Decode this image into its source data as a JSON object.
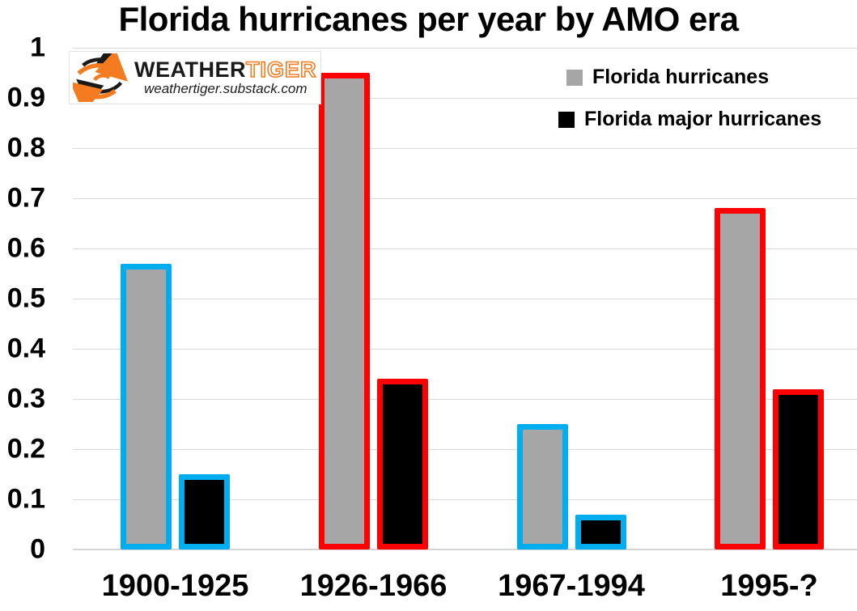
{
  "title": "Florida hurricanes per year by AMO era",
  "logo": {
    "brand_weather": "WEATHER",
    "brand_tiger": "TIGER",
    "subtitle": "weathertiger.substack.com",
    "orange": "#F47B20",
    "black": "#1A1A1A"
  },
  "legend": {
    "items": [
      {
        "label": "Florida hurricanes",
        "swatch": "#A6A6A6"
      },
      {
        "label": "Florida major hurricanes",
        "swatch": "#000000"
      }
    ]
  },
  "chart_data": {
    "type": "bar",
    "title": "Florida hurricanes per year by AMO era",
    "categories": [
      "1900-1925",
      "1926-1966",
      "1967-1994",
      "1995-?"
    ],
    "series": [
      {
        "name": "Florida hurricanes",
        "fill": "#A6A6A6",
        "values": [
          0.57,
          0.95,
          0.25,
          0.68
        ]
      },
      {
        "name": "Florida major hurricanes",
        "fill": "#000000",
        "values": [
          0.15,
          0.34,
          0.07,
          0.32
        ]
      }
    ],
    "era_outline_colors": [
      "#00AEEF",
      "#FE0000",
      "#00AEEF",
      "#FE0000"
    ],
    "ylim": [
      0,
      1
    ],
    "ytick_labels": [
      "0",
      "0.1",
      "0.2",
      "0.3",
      "0.4",
      "0.5",
      "0.6",
      "0.7",
      "0.8",
      "0.9",
      "1"
    ],
    "grid": true,
    "gridline_color": "#D9D9D9",
    "legend_position": "top-right"
  }
}
